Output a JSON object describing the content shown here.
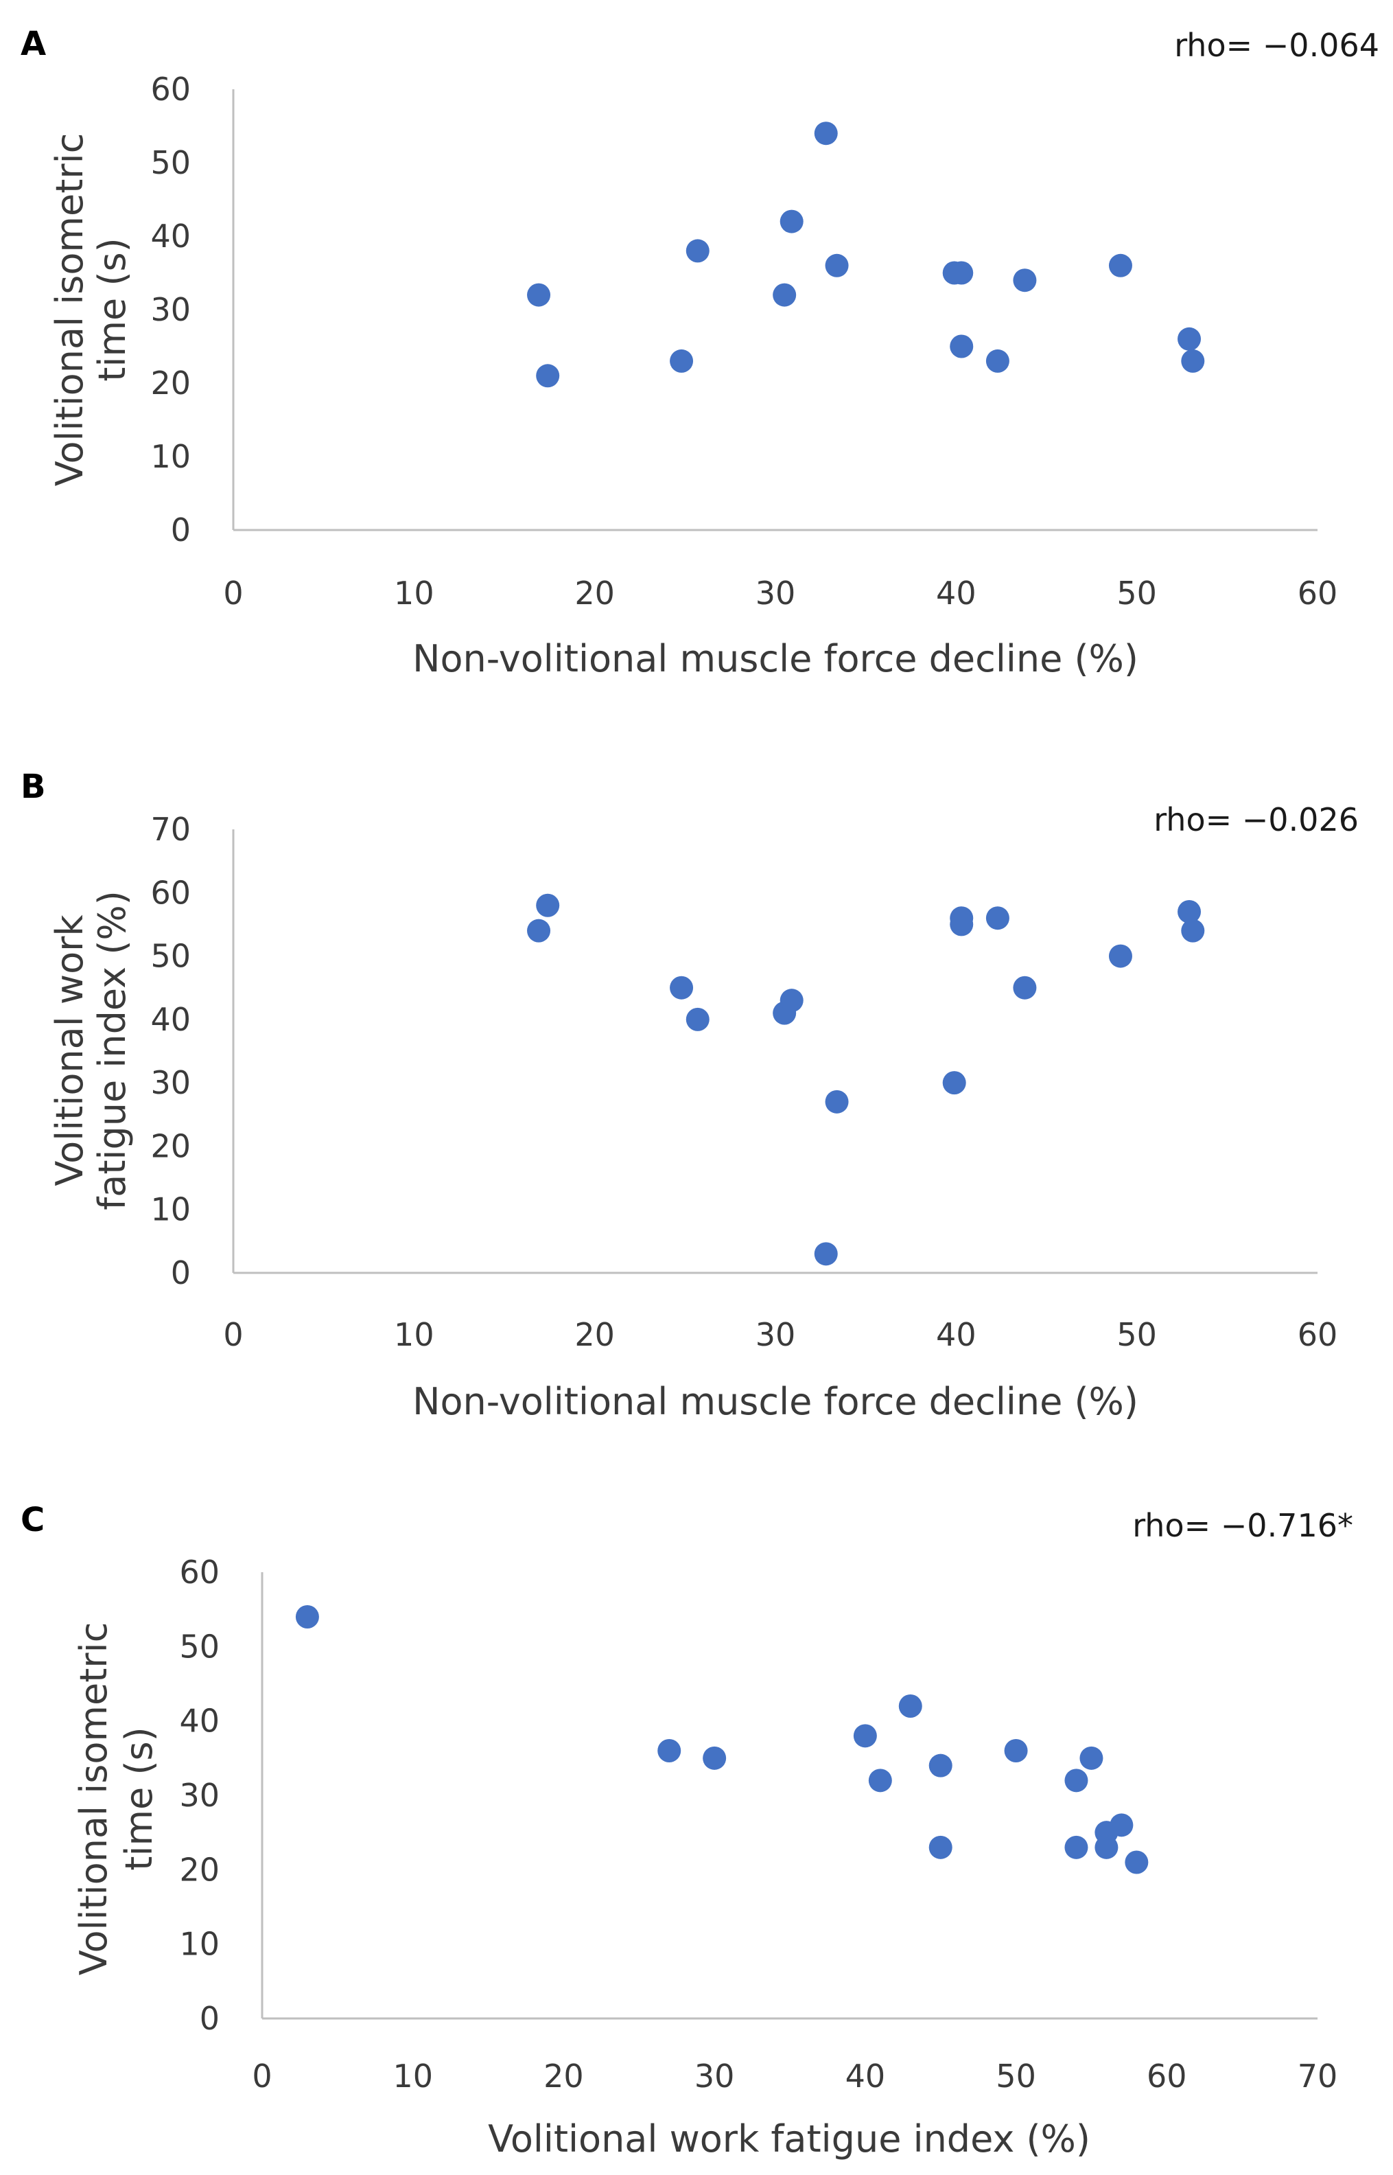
{
  "chart_data": [
    {
      "panel": "A",
      "type": "scatter",
      "annotation": "rho= −0.064",
      "xlabel": "Non-volitional muscle force decline (%)",
      "ylabel_lines": [
        "Volitional isometric",
        "time (s)"
      ],
      "xlim": [
        0,
        60
      ],
      "ylim": [
        0,
        60
      ],
      "xticks": [
        0,
        10,
        20,
        30,
        40,
        50,
        60
      ],
      "yticks": [
        0,
        10,
        20,
        30,
        40,
        50,
        60
      ],
      "grid": false,
      "marker_color": "#4472C4",
      "points": [
        {
          "x": 16.9,
          "y": 32
        },
        {
          "x": 17.4,
          "y": 21
        },
        {
          "x": 24.8,
          "y": 23
        },
        {
          "x": 25.7,
          "y": 38
        },
        {
          "x": 30.5,
          "y": 32
        },
        {
          "x": 30.9,
          "y": 42
        },
        {
          "x": 32.8,
          "y": 54
        },
        {
          "x": 33.4,
          "y": 36
        },
        {
          "x": 39.9,
          "y": 35
        },
        {
          "x": 40.3,
          "y": 35
        },
        {
          "x": 40.3,
          "y": 25
        },
        {
          "x": 42.3,
          "y": 23
        },
        {
          "x": 43.8,
          "y": 34
        },
        {
          "x": 49.1,
          "y": 36
        },
        {
          "x": 52.9,
          "y": 26
        },
        {
          "x": 53.1,
          "y": 23
        }
      ]
    },
    {
      "panel": "B",
      "type": "scatter",
      "annotation": "rho= −0.026",
      "xlabel": "Non-volitional muscle force decline (%)",
      "ylabel_lines": [
        "Volitional work",
        "fatigue index (%)"
      ],
      "xlim": [
        0,
        60
      ],
      "ylim": [
        0,
        70
      ],
      "xticks": [
        0,
        10,
        20,
        30,
        40,
        50,
        60
      ],
      "yticks": [
        0,
        10,
        20,
        30,
        40,
        50,
        60,
        70
      ],
      "grid": false,
      "marker_color": "#4472C4",
      "points": [
        {
          "x": 16.9,
          "y": 54
        },
        {
          "x": 17.4,
          "y": 58
        },
        {
          "x": 24.8,
          "y": 45
        },
        {
          "x": 25.7,
          "y": 40
        },
        {
          "x": 30.5,
          "y": 41
        },
        {
          "x": 30.9,
          "y": 43
        },
        {
          "x": 32.8,
          "y": 3
        },
        {
          "x": 33.4,
          "y": 27
        },
        {
          "x": 39.9,
          "y": 30
        },
        {
          "x": 40.3,
          "y": 56
        },
        {
          "x": 40.3,
          "y": 55
        },
        {
          "x": 42.3,
          "y": 56
        },
        {
          "x": 43.8,
          "y": 45
        },
        {
          "x": 49.1,
          "y": 50
        },
        {
          "x": 52.9,
          "y": 57
        },
        {
          "x": 53.1,
          "y": 54
        }
      ]
    },
    {
      "panel": "C",
      "type": "scatter",
      "annotation": "rho= −0.716*",
      "xlabel": "Volitional work fatigue index (%)",
      "ylabel_lines": [
        "Volitional isometric",
        "time (s)"
      ],
      "xlim": [
        0,
        70
      ],
      "ylim": [
        0,
        60
      ],
      "xticks": [
        0,
        10,
        20,
        30,
        40,
        50,
        60,
        70
      ],
      "yticks": [
        0,
        10,
        20,
        30,
        40,
        50,
        60
      ],
      "grid": false,
      "marker_color": "#4472C4",
      "points": [
        {
          "x": 3,
          "y": 54
        },
        {
          "x": 27,
          "y": 36
        },
        {
          "x": 30,
          "y": 35
        },
        {
          "x": 40,
          "y": 38
        },
        {
          "x": 41,
          "y": 32
        },
        {
          "x": 43,
          "y": 42
        },
        {
          "x": 45,
          "y": 34
        },
        {
          "x": 45,
          "y": 23
        },
        {
          "x": 50,
          "y": 36
        },
        {
          "x": 54,
          "y": 32
        },
        {
          "x": 54,
          "y": 23
        },
        {
          "x": 55,
          "y": 35
        },
        {
          "x": 56,
          "y": 25
        },
        {
          "x": 56,
          "y": 23
        },
        {
          "x": 57,
          "y": 26
        },
        {
          "x": 58,
          "y": 21
        }
      ]
    }
  ]
}
